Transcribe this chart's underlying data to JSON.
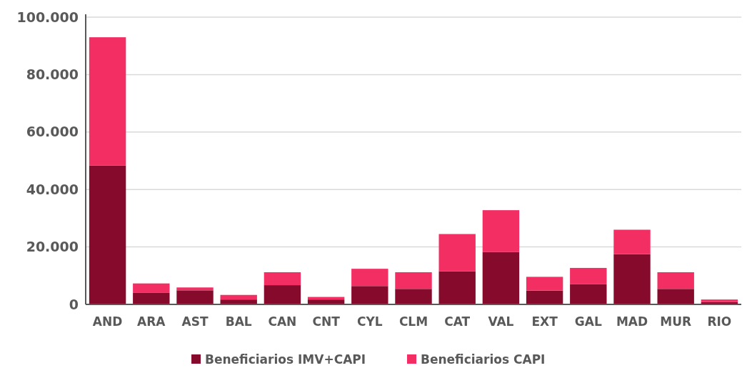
{
  "chart_data": {
    "type": "bar",
    "stacked": true,
    "categories": [
      "AND",
      "ARA",
      "AST",
      "BAL",
      "CAN",
      "CNT",
      "CYL",
      "CLM",
      "CAT",
      "VAL",
      "EXT",
      "GAL",
      "MAD",
      "MUR",
      "RIO"
    ],
    "series": [
      {
        "name": "Beneficiarios IMV+CAPI",
        "color": "#850a2b",
        "values": [
          48300,
          4000,
          4900,
          1700,
          6700,
          1700,
          6400,
          5400,
          11500,
          18200,
          4800,
          7000,
          17500,
          5400,
          800
        ]
      },
      {
        "name": "Beneficiarios CAPI",
        "color": "#f22e63",
        "values": [
          44700,
          3300,
          1000,
          1600,
          4500,
          900,
          6000,
          5800,
          13000,
          14600,
          4800,
          5700,
          8500,
          5800,
          900
        ]
      }
    ],
    "ylim": [
      0,
      100000
    ],
    "yticks": [
      0,
      {
        "value": 20000,
        "label": "20.000"
      },
      {
        "value": 40000,
        "label": "40.000"
      },
      {
        "value": 60000,
        "label": "60.000"
      },
      {
        "value": 80000,
        "label": "80.000"
      },
      {
        "value": 100000,
        "label": "100.000"
      }
    ],
    "grid": "y",
    "legend": "bottom"
  }
}
